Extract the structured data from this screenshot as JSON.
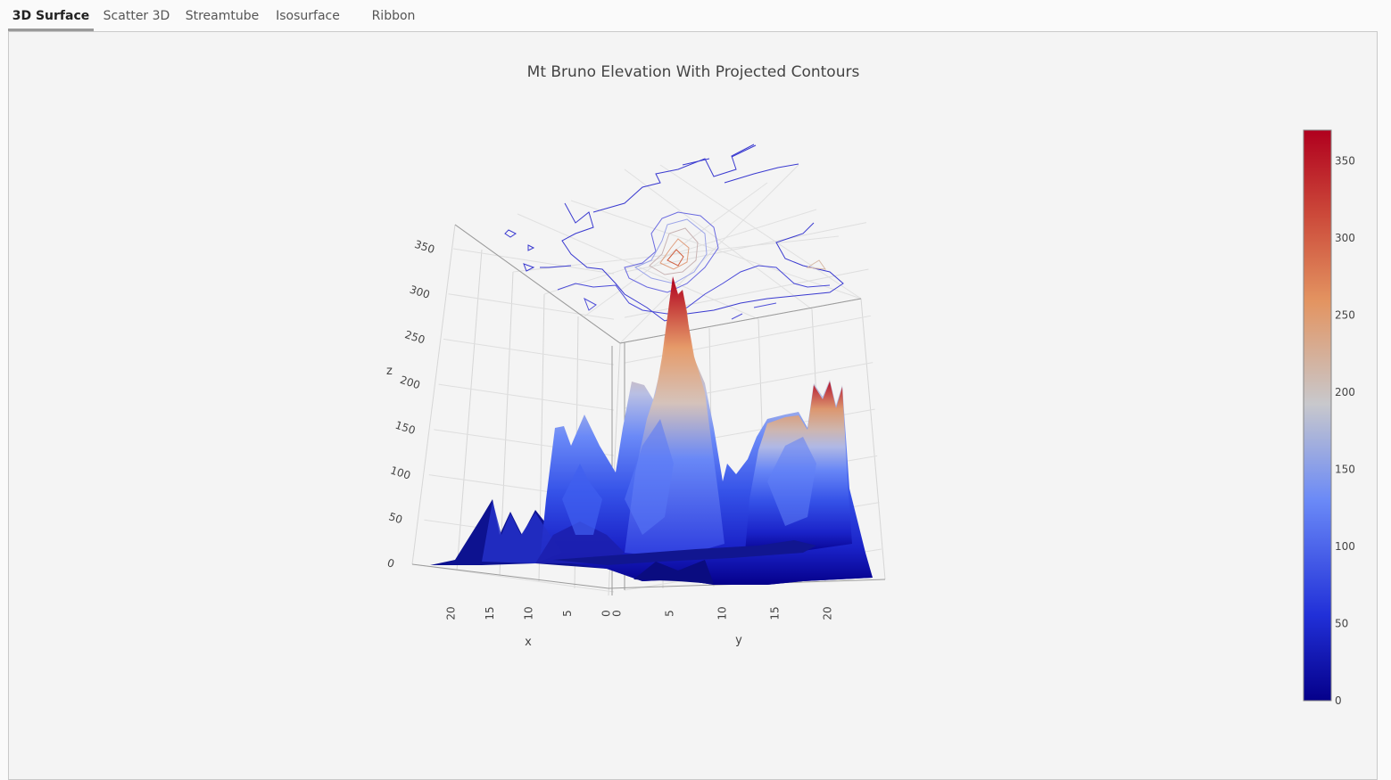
{
  "tabs": [
    {
      "label": "3D Surface",
      "active": true
    },
    {
      "label": "Scatter 3D",
      "active": false
    },
    {
      "label": "Streamtube",
      "active": false
    },
    {
      "label": "Isosurface",
      "active": false
    },
    {
      "label": "Ribbon",
      "active": false
    }
  ],
  "chart_data": {
    "type": "surface",
    "title": "Mt Bruno Elevation With Projected Contours",
    "xlabel": "x",
    "ylabel": "y",
    "zlabel": "z",
    "x_ticks": [
      0,
      5,
      10,
      15,
      20
    ],
    "y_ticks": [
      0,
      5,
      10,
      15,
      20
    ],
    "z_ticks": [
      0,
      50,
      100,
      150,
      200,
      250,
      300,
      350
    ],
    "xlim": [
      0,
      24
    ],
    "ylim": [
      0,
      24
    ],
    "zlim": [
      0,
      370
    ],
    "colorscale": "RdBu_r",
    "colors": {
      "low": "#05008a",
      "mid_low": "#6a89f7",
      "mid": "#c8c8cc",
      "mid_high": "#e39461",
      "high": "#b0001e"
    },
    "colorbar": {
      "ticks": [
        0,
        50,
        100,
        150,
        200,
        250,
        300,
        350
      ],
      "range": [
        0,
        370
      ]
    },
    "contours": {
      "project_z": true
    }
  }
}
